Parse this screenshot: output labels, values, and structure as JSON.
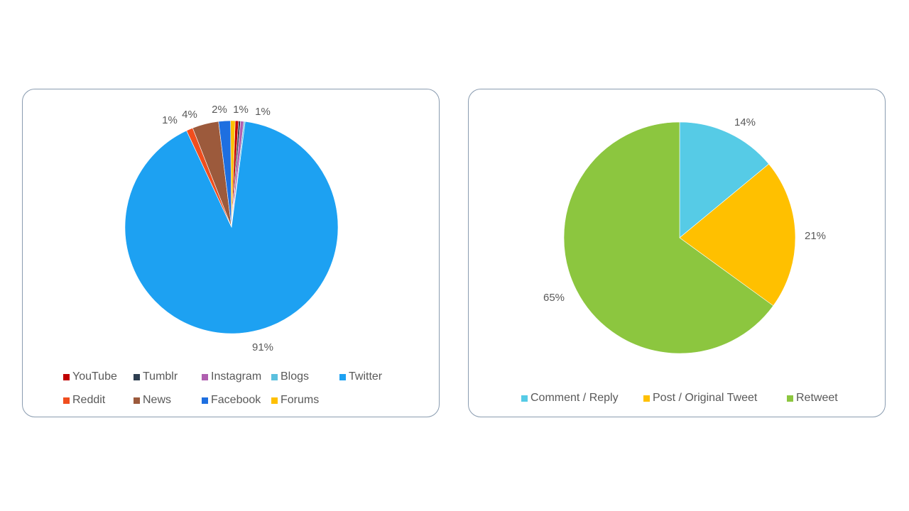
{
  "chart_data": [
    {
      "type": "pie",
      "slices": [
        {
          "label": "YouTube",
          "value": 0.5,
          "color": "#c00000",
          "display": ""
        },
        {
          "label": "Tumblr",
          "value": 0.3,
          "color": "#2e3e50",
          "display": ""
        },
        {
          "label": "Instagram",
          "value": 0.5,
          "color": "#b05fb0",
          "display": "1%"
        },
        {
          "label": "Blogs",
          "value": 0.2,
          "color": "#5bc0de",
          "display": ""
        },
        {
          "label": "Twitter",
          "value": 91,
          "color": "#1da1f2",
          "display": "91%"
        },
        {
          "label": "Reddit",
          "value": 1,
          "color": "#f04e1e",
          "display": "1%"
        },
        {
          "label": "News",
          "value": 4,
          "color": "#9c5a3c",
          "display": "4%"
        },
        {
          "label": "Facebook",
          "value": 1.8,
          "color": "#1e6fe0",
          "display": "2%"
        },
        {
          "label": "Forums",
          "value": 0.7,
          "color": "#ffc000",
          "display": "1%"
        }
      ],
      "start_angle_deg": 2,
      "legend_position": "bottom"
    },
    {
      "type": "pie",
      "slices": [
        {
          "label": "Comment / Reply",
          "value": 14,
          "color": "#56cbe6",
          "display": "14%"
        },
        {
          "label": "Post / Original Tweet",
          "value": 21,
          "color": "#ffc000",
          "display": "21%"
        },
        {
          "label": "Retweet",
          "value": 65,
          "color": "#8cc63f",
          "display": "65%"
        }
      ],
      "start_angle_deg": 0,
      "legend_position": "bottom"
    }
  ]
}
